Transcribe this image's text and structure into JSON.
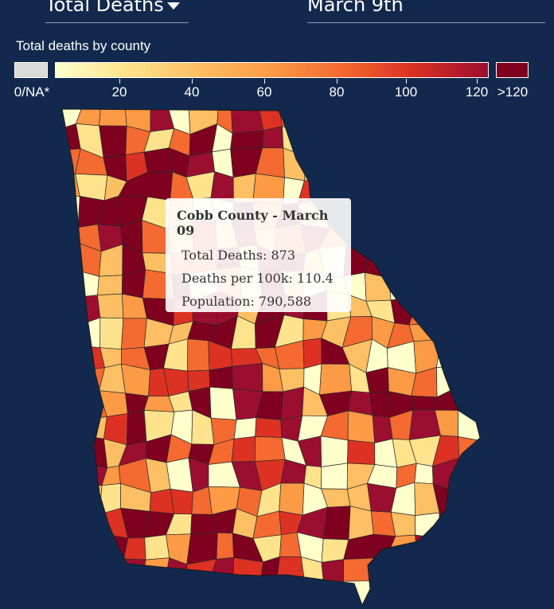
{
  "header": {
    "metric_label": "Total Deaths",
    "date_label": "March 9th"
  },
  "legend": {
    "title": "Total deaths by county",
    "na_label": "0/NA*",
    "over_label": ">120",
    "ticks": [
      "20",
      "40",
      "60",
      "80",
      "100",
      "120"
    ]
  },
  "tooltip": {
    "title": "Cobb County - March 09",
    "rows": [
      "Total Deaths: 873",
      "Deaths per 100k: 110.4",
      "Population: 790,588"
    ]
  },
  "colors": {
    "background": "#12294d",
    "na": "#dadada",
    "over": "#80001f",
    "ramp": [
      "#ffffcc",
      "#fee38c",
      "#fdbf63",
      "#fd9a45",
      "#f46a30",
      "#dd3223",
      "#9c0e2f"
    ]
  }
}
